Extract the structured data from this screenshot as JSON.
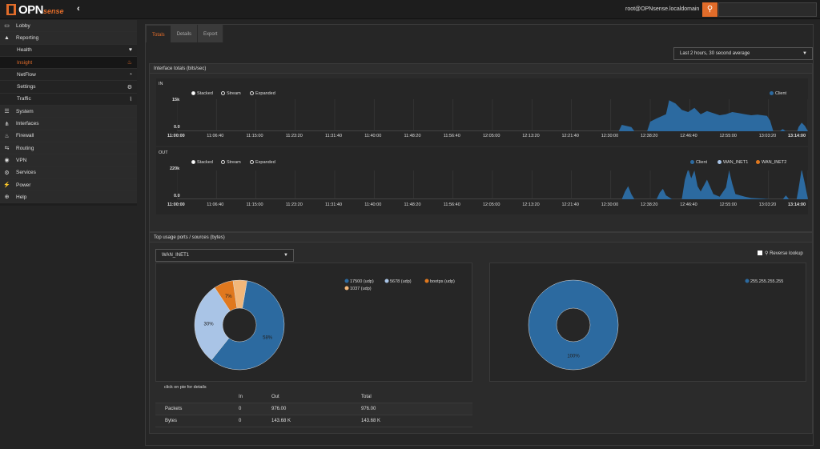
{
  "app": {
    "logo": "OPN",
    "logo2": "sense",
    "collapse_icon": "chevron-left",
    "user": "root@OPNsense.localdomain",
    "search_placeholder": ""
  },
  "sidebar": [
    {
      "label": "Lobby",
      "icon": "laptop-icon",
      "glyph": "▭",
      "type": "top"
    },
    {
      "label": "Reporting",
      "icon": "area-chart-icon",
      "glyph": "▲",
      "type": "top"
    },
    {
      "label": "Health",
      "icon": "heartbeat-icon",
      "glyph": "♥",
      "type": "sub"
    },
    {
      "label": "Insight",
      "icon": "fire-icon",
      "glyph": "♨",
      "type": "sub",
      "active": true
    },
    {
      "label": "NetFlow",
      "icon": "rss-icon",
      "glyph": "◔",
      "type": "sub"
    },
    {
      "label": "Settings",
      "icon": "gear-icon",
      "glyph": "⚙",
      "type": "sub"
    },
    {
      "label": "Traffic",
      "icon": "line-chart-icon",
      "glyph": "⌇",
      "type": "sub"
    },
    {
      "label": "System",
      "icon": "server-icon",
      "glyph": "☰",
      "type": "top"
    },
    {
      "label": "Interfaces",
      "icon": "sitemap-icon",
      "glyph": "⋔",
      "type": "top"
    },
    {
      "label": "Firewall",
      "icon": "fire-icon",
      "glyph": "♨",
      "type": "top"
    },
    {
      "label": "Routing",
      "icon": "signs-icon",
      "glyph": "⇆",
      "type": "top"
    },
    {
      "label": "VPN",
      "icon": "globe-icon",
      "glyph": "◉",
      "type": "top"
    },
    {
      "label": "Services",
      "icon": "cog-icon",
      "glyph": "⚙",
      "type": "top"
    },
    {
      "label": "Power",
      "icon": "plug-icon",
      "glyph": "⚡",
      "type": "top"
    },
    {
      "label": "Help",
      "icon": "support-icon",
      "glyph": "⊕",
      "type": "top"
    }
  ],
  "tabs": [
    "Totals",
    "Details",
    "Export"
  ],
  "range_select": "Last 2 hours, 30 second average",
  "totals_panel": {
    "title": "Interface totals (bits/sec)"
  },
  "in_chart": {
    "label": "IN",
    "ymax_label": "15k",
    "ymin_label": "0.0",
    "modes": [
      "Stacked",
      "Stream",
      "Expanded"
    ],
    "legend": [
      {
        "name": "Client",
        "color": "#2c6aa0"
      }
    ]
  },
  "out_chart": {
    "label": "OUT",
    "ymax_label": "220k",
    "ymin_label": "0.0",
    "modes": [
      "Stacked",
      "Stream",
      "Expanded"
    ],
    "legend": [
      {
        "name": "Client",
        "color": "#2c6aa0"
      },
      {
        "name": "WAN_INET1",
        "color": "#a9c4e6"
      },
      {
        "name": "WAN_INET2",
        "color": "#e0781e"
      }
    ]
  },
  "x_ticks": [
    "11:00:00",
    "11:06:40",
    "11:15:00",
    "11:23:20",
    "11:31:40",
    "11:40:00",
    "11:48:20",
    "11:56:40",
    "12:05:00",
    "12:13:20",
    "12:21:40",
    "12:30:00",
    "12:38:20",
    "12:46:40",
    "12:55:00",
    "13:03:20",
    "13:14:00"
  ],
  "top_panel": {
    "title": "Top usage ports / sources (bytes)",
    "interface": "WAN_INET1",
    "reverse_lookup": "Reverse lookup",
    "pie_hint": "click on pie for details"
  },
  "stats_table": {
    "headers": [
      "",
      "In",
      "Out",
      "Total"
    ],
    "rows": [
      [
        "Packets",
        "0",
        "976.00",
        "976.00"
      ],
      [
        "Bytes",
        "0",
        "143.68 K",
        "143.68 K"
      ]
    ]
  },
  "chart_data": [
    {
      "type": "area",
      "title": "IN",
      "x_start": "11:00:00",
      "x_end": "13:14:00",
      "ylim": [
        0,
        15000
      ],
      "series": [
        {
          "name": "Client",
          "color": "#2c6aa0",
          "points": [
            [
              0,
              0
            ],
            [
              0.7,
              0
            ],
            [
              0.705,
              3000
            ],
            [
              0.72,
              2000
            ],
            [
              0.725,
              0
            ],
            [
              0.745,
              0
            ],
            [
              0.75,
              4500
            ],
            [
              0.76,
              6000
            ],
            [
              0.775,
              8000
            ],
            [
              0.78,
              14500
            ],
            [
              0.79,
              13000
            ],
            [
              0.8,
              10000
            ],
            [
              0.81,
              9000
            ],
            [
              0.82,
              11000
            ],
            [
              0.83,
              8000
            ],
            [
              0.84,
              9500
            ],
            [
              0.86,
              7500
            ],
            [
              0.87,
              8000
            ],
            [
              0.88,
              9000
            ],
            [
              0.89,
              8500
            ],
            [
              0.9,
              8000
            ],
            [
              0.91,
              7500
            ],
            [
              0.92,
              7800
            ],
            [
              0.935,
              7200
            ],
            [
              0.94,
              5000
            ],
            [
              0.945,
              0
            ],
            [
              0.955,
              0
            ],
            [
              0.96,
              1000
            ],
            [
              0.965,
              0
            ],
            [
              0.983,
              0
            ],
            [
              0.985,
              2000
            ],
            [
              0.99,
              4000
            ],
            [
              0.995,
              2500
            ],
            [
              1,
              0
            ]
          ]
        }
      ]
    },
    {
      "type": "area",
      "title": "OUT",
      "x_start": "11:00:00",
      "x_end": "13:14:00",
      "ylim": [
        0,
        220000
      ],
      "series": [
        {
          "name": "Client",
          "color": "#2c6aa0",
          "points": [
            [
              0,
              0
            ],
            [
              0.705,
              0
            ],
            [
              0.71,
              60000
            ],
            [
              0.715,
              100000
            ],
            [
              0.72,
              40000
            ],
            [
              0.725,
              0
            ],
            [
              0.76,
              0
            ],
            [
              0.765,
              50000
            ],
            [
              0.77,
              80000
            ],
            [
              0.775,
              30000
            ],
            [
              0.785,
              0
            ],
            [
              0.8,
              0
            ],
            [
              0.805,
              150000
            ],
            [
              0.81,
              230000
            ],
            [
              0.815,
              160000
            ],
            [
              0.82,
              220000
            ],
            [
              0.825,
              100000
            ],
            [
              0.83,
              60000
            ],
            [
              0.84,
              150000
            ],
            [
              0.85,
              40000
            ],
            [
              0.86,
              20000
            ],
            [
              0.87,
              90000
            ],
            [
              0.875,
              220000
            ],
            [
              0.88,
              120000
            ],
            [
              0.885,
              40000
            ],
            [
              0.9,
              20000
            ],
            [
              0.91,
              10000
            ],
            [
              0.93,
              5000
            ],
            [
              0.94,
              0
            ],
            [
              0.96,
              0
            ],
            [
              0.965,
              30000
            ],
            [
              0.97,
              0
            ],
            [
              0.982,
              0
            ],
            [
              0.985,
              80000
            ],
            [
              0.99,
              230000
            ],
            [
              0.995,
              120000
            ],
            [
              1,
              0
            ]
          ]
        }
      ]
    },
    {
      "type": "pie",
      "title": "",
      "slices": [
        {
          "label": "17500 (udp)",
          "value": 58,
          "color": "#2c6aa0"
        },
        {
          "label": "5678 (udp)",
          "value": 30,
          "color": "#a9c4e6"
        },
        {
          "label": "bootps (udp)",
          "value": 7,
          "color": "#e0781e"
        },
        {
          "label": "1037 (udp)",
          "value": 5,
          "color": "#f2b77a"
        }
      ],
      "slice_labels": [
        "58%",
        "30%",
        "7%",
        ""
      ]
    },
    {
      "type": "pie",
      "title": "",
      "slices": [
        {
          "label": "255.255.255.255",
          "value": 100,
          "color": "#2c6aa0"
        }
      ],
      "slice_labels": [
        "100%"
      ]
    }
  ]
}
